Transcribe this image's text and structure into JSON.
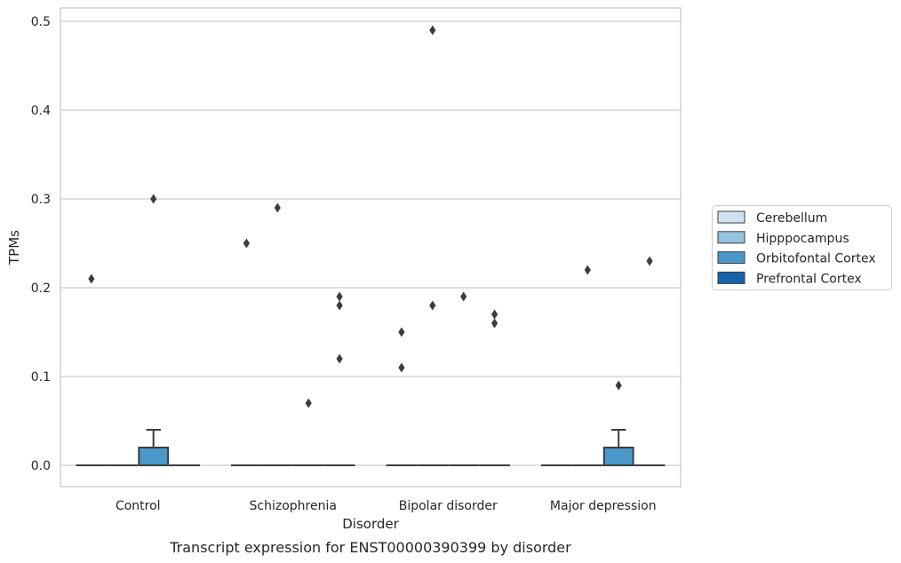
{
  "chart_data": {
    "type": "box",
    "title": "",
    "caption": "Transcript expression for ENST00000390399 by disorder",
    "xlabel": "Disorder",
    "ylabel": "TPMs",
    "ylim": [
      -0.024,
      0.515
    ],
    "yticks": [
      0.0,
      0.1,
      0.2,
      0.3,
      0.4,
      0.5
    ],
    "ytick_labels": [
      "0.0",
      "0.1",
      "0.2",
      "0.3",
      "0.4",
      "0.5"
    ],
    "grid": true,
    "legend_position": "right",
    "categories": [
      "Control",
      "Schizophrenia",
      "Bipolar disorder",
      "Major depression"
    ],
    "series": [
      {
        "name": "Cerebellum",
        "color": "#d0e1f2",
        "boxes": [
          {
            "q1": 0,
            "median": 0,
            "q3": 0,
            "whisker_low": 0,
            "whisker_high": 0,
            "outliers": [
              0.21
            ]
          },
          {
            "q1": 0,
            "median": 0,
            "q3": 0,
            "whisker_low": 0,
            "whisker_high": 0,
            "outliers": [
              0.25
            ]
          },
          {
            "q1": 0,
            "median": 0,
            "q3": 0,
            "whisker_low": 0,
            "whisker_high": 0,
            "outliers": [
              0.15,
              0.11
            ]
          },
          {
            "q1": 0,
            "median": 0,
            "q3": 0,
            "whisker_low": 0,
            "whisker_high": 0,
            "outliers": []
          }
        ]
      },
      {
        "name": "Hipppocampus",
        "color": "#94c4df",
        "boxes": [
          {
            "q1": 0,
            "median": 0,
            "q3": 0,
            "whisker_low": 0,
            "whisker_high": 0,
            "outliers": []
          },
          {
            "q1": 0,
            "median": 0,
            "q3": 0,
            "whisker_low": 0,
            "whisker_high": 0,
            "outliers": [
              0.29
            ]
          },
          {
            "q1": 0,
            "median": 0,
            "q3": 0,
            "whisker_low": 0,
            "whisker_high": 0,
            "outliers": [
              0.49,
              0.18
            ]
          },
          {
            "q1": 0,
            "median": 0,
            "q3": 0,
            "whisker_low": 0,
            "whisker_high": 0,
            "outliers": [
              0.22
            ]
          }
        ]
      },
      {
        "name": "Orbitofontal Cortex",
        "color": "#4a98c9",
        "boxes": [
          {
            "q1": 0,
            "median": 0,
            "q3": 0.02,
            "whisker_low": 0,
            "whisker_high": 0.04,
            "outliers": [
              0.3
            ]
          },
          {
            "q1": 0,
            "median": 0,
            "q3": 0,
            "whisker_low": 0,
            "whisker_high": 0,
            "outliers": [
              0.07
            ]
          },
          {
            "q1": 0,
            "median": 0,
            "q3": 0,
            "whisker_low": 0,
            "whisker_high": 0,
            "outliers": [
              0.19
            ]
          },
          {
            "q1": 0,
            "median": 0,
            "q3": 0.02,
            "whisker_low": 0,
            "whisker_high": 0.04,
            "outliers": [
              0.09
            ]
          }
        ]
      },
      {
        "name": "Prefrontal Cortex",
        "color": "#1764ab",
        "boxes": [
          {
            "q1": 0,
            "median": 0,
            "q3": 0,
            "whisker_low": 0,
            "whisker_high": 0,
            "outliers": []
          },
          {
            "q1": 0,
            "median": 0,
            "q3": 0,
            "whisker_low": 0,
            "whisker_high": 0,
            "outliers": [
              0.19,
              0.18,
              0.12
            ]
          },
          {
            "q1": 0,
            "median": 0,
            "q3": 0,
            "whisker_low": 0,
            "whisker_high": 0,
            "outliers": [
              0.17,
              0.16
            ]
          },
          {
            "q1": 0,
            "median": 0,
            "q3": 0,
            "whisker_low": 0,
            "whisker_high": 0,
            "outliers": [
              0.23
            ]
          }
        ]
      }
    ]
  }
}
